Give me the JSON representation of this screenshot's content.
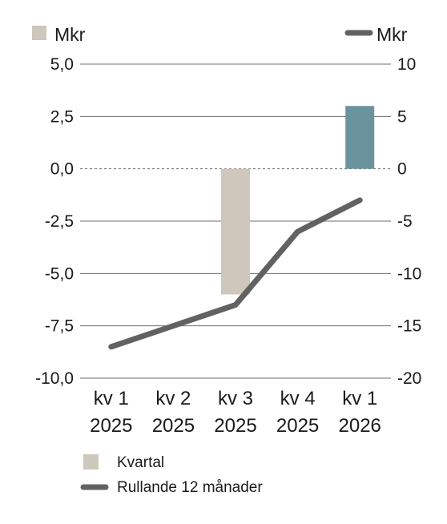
{
  "chart_data": {
    "type": "bar",
    "categories": [
      [
        "kv 1",
        "2025"
      ],
      [
        "kv 2",
        "2025"
      ],
      [
        "kv 3",
        "2025"
      ],
      [
        "kv 4",
        "2025"
      ],
      [
        "kv 1",
        "2026"
      ]
    ],
    "left_axis": {
      "label": "Mkr",
      "ylim": [
        -10,
        5
      ],
      "ticks": [
        "5,0",
        "2,5",
        "0,0",
        "-2,5",
        "-5,0",
        "-7,5",
        "-10,0"
      ],
      "tick_values": [
        5,
        2.5,
        0,
        -2.5,
        -5,
        -7.5,
        -10
      ]
    },
    "right_axis": {
      "label": "Mkr",
      "ylim": [
        -20,
        10
      ],
      "ticks": [
        "10",
        "5",
        "0",
        "-5",
        "-10",
        "-15",
        "-20"
      ],
      "tick_values": [
        10,
        5,
        0,
        -5,
        -10,
        -15,
        -20
      ]
    },
    "series": [
      {
        "name": "Kvartal",
        "type": "bar",
        "axis": "left",
        "values": [
          0,
          0,
          -6.0,
          0,
          3.0
        ],
        "colors": [
          "#cdc8bb",
          "#cdc8bb",
          "#cdc8bb",
          "#cdc8bb",
          "#6b939e"
        ]
      },
      {
        "name": "Rullande 12 månader",
        "type": "line",
        "axis": "right",
        "values": [
          -17.0,
          -15.0,
          -13.0,
          -6.0,
          -3.0
        ],
        "color": "#626262"
      }
    ],
    "grid": true,
    "legend_position": "bottom-left"
  },
  "colors": {
    "bar": "#cdc8bb",
    "bar_highlight": "#6b939e",
    "line": "#626262",
    "grid": "#6e6e6e",
    "text": "#1a1a1a"
  }
}
